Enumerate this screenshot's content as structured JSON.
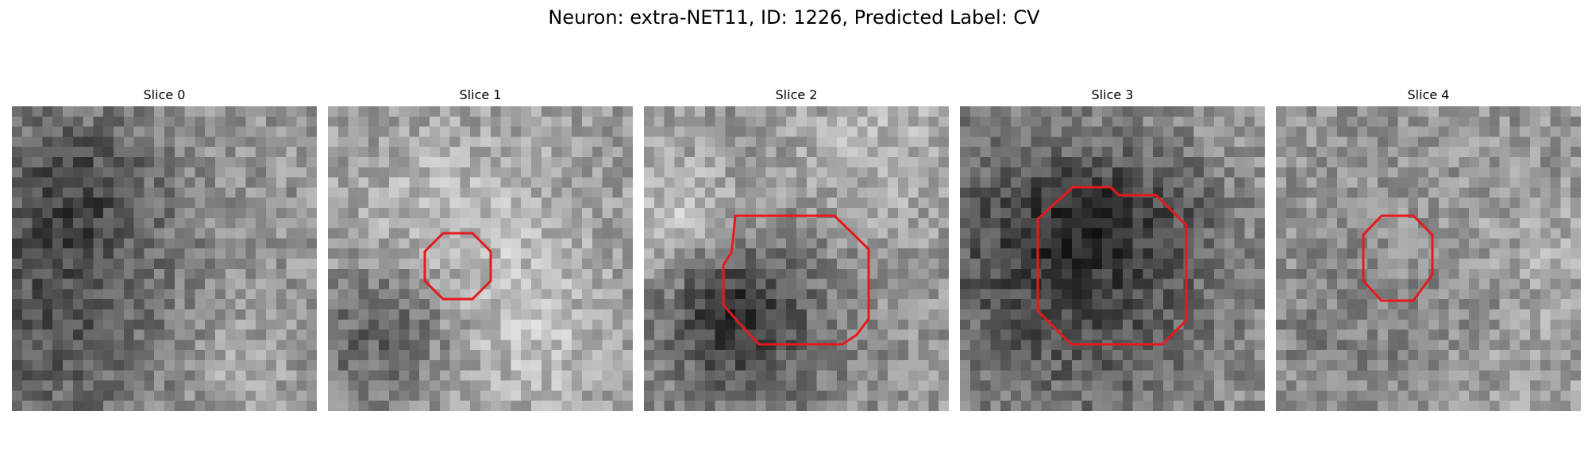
{
  "figure": {
    "title": "Neuron: extra-NET11, ID: 1226, Predicted Label: CV"
  },
  "slices": [
    {
      "title": "Slice 0",
      "contour": false
    },
    {
      "title": "Slice 1",
      "contour": true
    },
    {
      "title": "Slice 2",
      "contour": true
    },
    {
      "title": "Slice 3",
      "contour": true
    },
    {
      "title": "Slice 4",
      "contour": true
    }
  ],
  "colors": {
    "contour": "#e41a1c",
    "background": "#ffffff"
  }
}
